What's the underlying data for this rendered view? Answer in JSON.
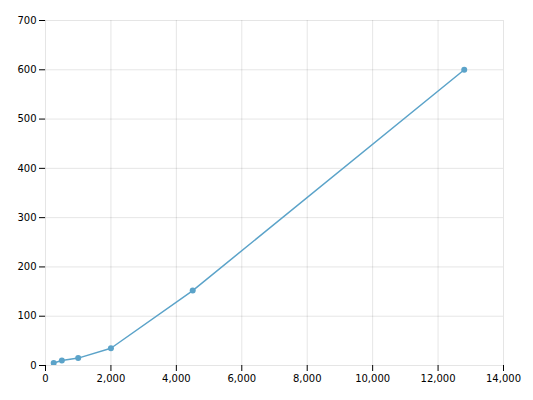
{
  "chart_data": {
    "type": "line",
    "x": [
      250,
      500,
      1000,
      2000,
      4500,
      12800
    ],
    "values": [
      5,
      10,
      15,
      35,
      152,
      600
    ],
    "color": "#5ba3c9",
    "marker": "circle",
    "xlim": [
      0,
      14000
    ],
    "ylim": [
      0,
      700
    ],
    "xticks": [
      0,
      {
        "value": 2000,
        "label": "2,000"
      },
      {
        "value": 4000,
        "label": "4,000"
      },
      {
        "value": 6000,
        "label": "6,000"
      },
      {
        "value": 8000,
        "label": "8,000"
      },
      {
        "value": 10000,
        "label": "10,000"
      },
      {
        "value": 12000,
        "label": "12,000"
      },
      {
        "value": 14000,
        "label": "14,000"
      }
    ],
    "yticks": [
      0,
      100,
      200,
      300,
      400,
      500,
      600,
      700
    ],
    "grid": true
  }
}
